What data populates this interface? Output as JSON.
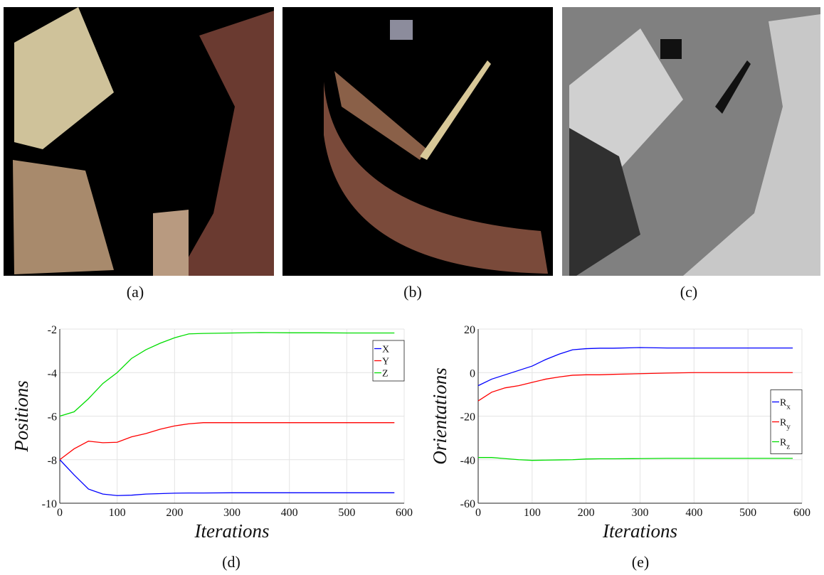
{
  "captions": [
    "(a)",
    "(b)",
    "(c)",
    "(d)",
    "(e)"
  ],
  "chart_data": [
    {
      "type": "line",
      "xlabel": "Iterations",
      "ylabel": "Positions",
      "x": [
        0,
        25,
        50,
        75,
        100,
        125,
        150,
        175,
        200,
        225,
        250,
        300,
        350,
        400,
        450,
        500,
        550,
        583
      ],
      "series": [
        {
          "name": "X",
          "color": "#0000ff",
          "values": [
            -8,
            -8.7,
            -9.35,
            -9.58,
            -9.65,
            -9.63,
            -9.58,
            -9.56,
            -9.54,
            -9.53,
            -9.53,
            -9.52,
            -9.52,
            -9.52,
            -9.52,
            -9.52,
            -9.52,
            -9.52
          ]
        },
        {
          "name": "Y",
          "color": "#ff0000",
          "values": [
            -8,
            -7.5,
            -7.15,
            -7.22,
            -7.2,
            -6.95,
            -6.8,
            -6.6,
            -6.45,
            -6.35,
            -6.3,
            -6.3,
            -6.3,
            -6.3,
            -6.3,
            -6.3,
            -6.3,
            -6.3
          ]
        },
        {
          "name": "Z",
          "color": "#00dd00",
          "values": [
            -6,
            -5.8,
            -5.2,
            -4.5,
            -4,
            -3.35,
            -2.95,
            -2.65,
            -2.4,
            -2.22,
            -2.2,
            -2.18,
            -2.16,
            -2.17,
            -2.17,
            -2.18,
            -2.18,
            -2.18
          ]
        }
      ],
      "xlim": [
        0,
        600
      ],
      "xticks": [
        0,
        100,
        200,
        300,
        400,
        500,
        600
      ],
      "ylim": [
        -10,
        -2
      ],
      "yticks": [
        -10,
        -8,
        -6,
        -4,
        -2
      ],
      "grid": true,
      "legend": "upper right"
    },
    {
      "type": "line",
      "xlabel": "Iterations",
      "ylabel": "Orientations",
      "x": [
        0,
        25,
        50,
        75,
        100,
        125,
        150,
        175,
        200,
        225,
        250,
        300,
        350,
        400,
        450,
        500,
        550,
        583
      ],
      "series": [
        {
          "name": "Rx",
          "color": "#0000ff",
          "values": [
            -6,
            -3,
            -1,
            1,
            3,
            6,
            8.5,
            10.5,
            11,
            11.2,
            11.2,
            11.5,
            11.3,
            11.3,
            11.3,
            11.3,
            11.3,
            11.3
          ]
        },
        {
          "name": "Ry",
          "color": "#ff0000",
          "values": [
            -13,
            -9,
            -7,
            -6,
            -4.5,
            -3,
            -2,
            -1.2,
            -1,
            -1,
            -0.8,
            -0.5,
            -0.2,
            0,
            0,
            0,
            0,
            0
          ]
        },
        {
          "name": "Rz",
          "color": "#00dd00",
          "values": [
            -39,
            -39,
            -39.5,
            -40,
            -40.3,
            -40.2,
            -40.1,
            -40,
            -39.7,
            -39.6,
            -39.6,
            -39.5,
            -39.4,
            -39.4,
            -39.4,
            -39.4,
            -39.4,
            -39.4
          ]
        }
      ],
      "xlim": [
        0,
        600
      ],
      "xticks": [
        0,
        100,
        200,
        300,
        400,
        500,
        600
      ],
      "ylim": [
        -60,
        20
      ],
      "yticks": [
        -60,
        -40,
        -20,
        0,
        20
      ],
      "grid": true,
      "legend": "right"
    }
  ]
}
